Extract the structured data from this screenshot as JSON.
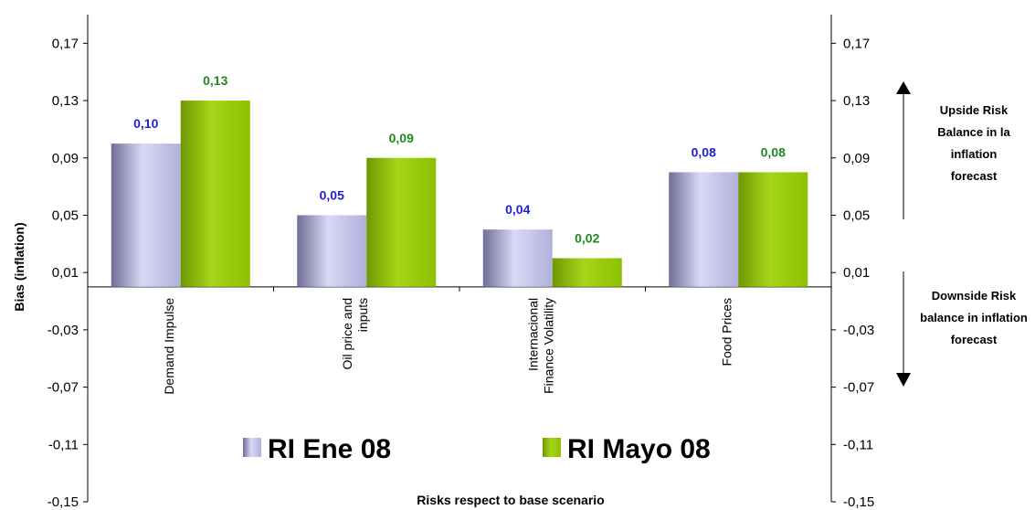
{
  "chart_data": {
    "type": "bar",
    "categories": [
      [
        "Demand Impulse"
      ],
      [
        "Oil price and",
        "inputs"
      ],
      [
        "Internacional",
        "Finance Volatility"
      ],
      [
        "Food Prices"
      ]
    ],
    "series": [
      {
        "name": "RI Ene 08",
        "values": [
          0.1,
          0.05,
          0.04,
          0.08
        ],
        "labels": [
          "0,10",
          "0,05",
          "0,04",
          "0,08"
        ],
        "label_color": "#1f1fd6"
      },
      {
        "name": "RI Mayo 08",
        "values": [
          0.13,
          0.09,
          0.02,
          0.08
        ],
        "labels": [
          "0,13",
          "0,09",
          "0,02",
          "0,08"
        ],
        "label_color": "#1e8a1e"
      }
    ],
    "ylabel": "Bias (inflation)",
    "xlabel": "Risks respect to base scenario",
    "ylim": [
      -0.15,
      0.19
    ],
    "yticks": [
      -0.15,
      -0.11,
      -0.07,
      -0.03,
      0.01,
      0.05,
      0.09,
      0.13,
      0.17
    ],
    "ytick_labels": [
      "-0,15",
      "-0,11",
      "-0,07",
      "-0,03",
      "0,01",
      "0,05",
      "0,09",
      "0,13",
      "0,17"
    ],
    "secondary_axis": "right",
    "annotations": {
      "upside": [
        "Upside Risk",
        "Balance in la",
        "inflation",
        "forecast"
      ],
      "downside": [
        "Downside Risk",
        "balance in inflation",
        "forecast"
      ]
    },
    "colors": {
      "series1": "#a9a9d9",
      "series2": "#8fc400"
    }
  }
}
